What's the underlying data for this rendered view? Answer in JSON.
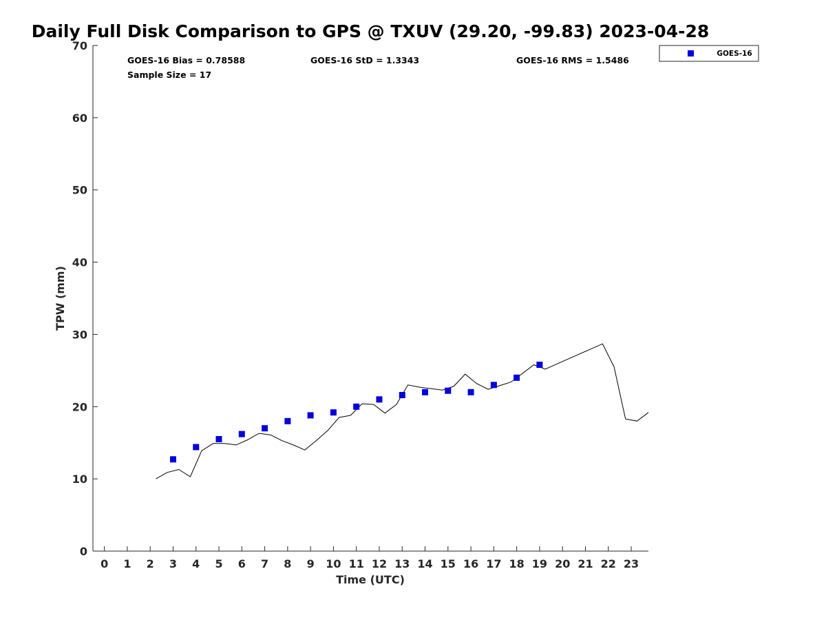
{
  "chart_data": {
    "type": "scatter",
    "title": "Daily Full Disk Comparison to GPS @ TXUV (29.20, -99.83) 2023-04-28",
    "xlabel": "Time (UTC)",
    "ylabel": "TPW (mm)",
    "xlim": [
      -0.5,
      23.75
    ],
    "ylim": [
      0,
      70
    ],
    "xticks": [
      0,
      1,
      2,
      3,
      4,
      5,
      6,
      7,
      8,
      9,
      10,
      11,
      12,
      13,
      14,
      15,
      16,
      17,
      18,
      19,
      20,
      21,
      22,
      23
    ],
    "yticks": [
      0,
      10,
      20,
      30,
      40,
      50,
      60,
      70
    ],
    "grid": false,
    "legend_position": "top-right",
    "stats": {
      "bias": "GOES-16 Bias = 0.78588",
      "std": "GOES-16 StD = 1.3343",
      "rms": "GOES-16 RMS = 1.5486",
      "sample_size": "Sample Size = 17"
    },
    "series": [
      {
        "name": "GOES-16",
        "kind": "scatter",
        "marker": "square",
        "color": "#0000dd",
        "x": [
          3,
          4,
          5,
          6,
          7,
          8,
          9,
          10,
          11,
          12,
          13,
          14,
          15,
          16,
          17,
          18,
          19
        ],
        "y": [
          12.7,
          14.4,
          15.5,
          16.2,
          17.0,
          18.0,
          18.8,
          19.2,
          20.0,
          21.0,
          21.6,
          22.0,
          22.2,
          22.0,
          23.0,
          24.0,
          25.8
        ]
      },
      {
        "kind": "line",
        "color": "#000000",
        "x": [
          2.25,
          2.75,
          3.25,
          3.75,
          4.25,
          4.75,
          5.25,
          5.75,
          6.25,
          6.75,
          7.25,
          7.75,
          8.25,
          8.75,
          9.25,
          9.75,
          10.25,
          10.75,
          11.25,
          11.75,
          12.25,
          12.75,
          13.25,
          13.75,
          14.25,
          14.75,
          15.25,
          15.75,
          16.25,
          16.75,
          17.25,
          17.75,
          18.25,
          18.75,
          19.25,
          19.75,
          20.25,
          20.75,
          21.25,
          21.75,
          22.25,
          22.75,
          23.25,
          23.75
        ],
        "y": [
          10.0,
          10.9,
          11.3,
          10.3,
          13.9,
          14.9,
          14.9,
          14.7,
          15.4,
          16.3,
          16.1,
          15.3,
          14.7,
          14.0,
          15.3,
          16.7,
          18.5,
          18.8,
          20.4,
          20.3,
          19.1,
          20.3,
          23.0,
          22.7,
          22.5,
          22.3,
          22.8,
          24.5,
          23.2,
          22.4,
          22.9,
          23.4,
          24.6,
          25.8,
          25.2,
          25.9,
          26.6,
          27.3,
          28.0,
          28.7,
          25.5,
          18.3,
          18.0,
          19.2
        ]
      }
    ]
  }
}
